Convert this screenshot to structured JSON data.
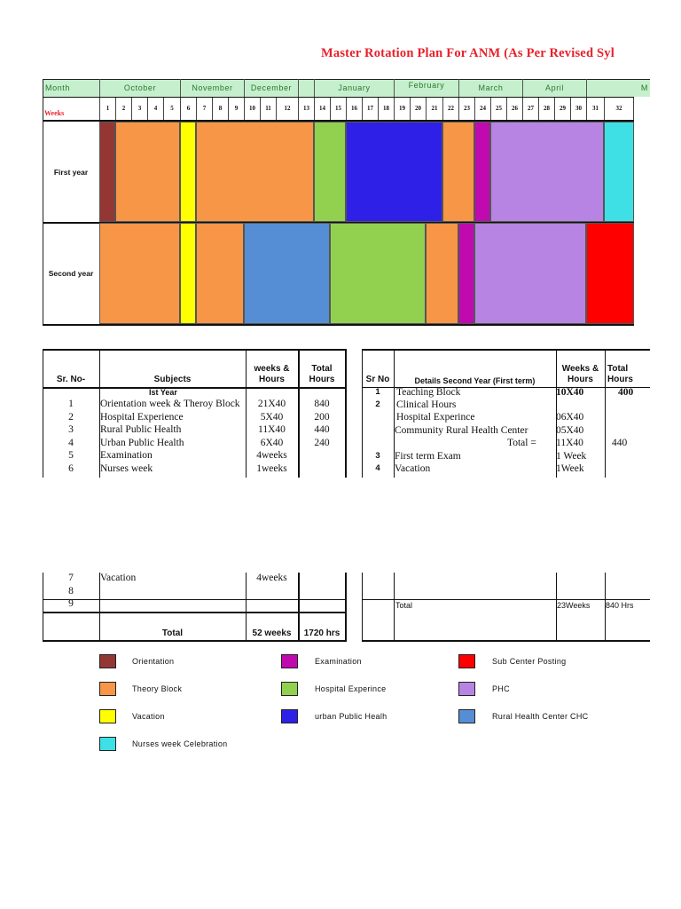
{
  "title": "Master Rotation Plan For ANM (As Per Revised Syllabus)",
  "title_visible": "Master Rotation Plan For ANM (As Per Revised Syl",
  "header": {
    "month_label": "Month",
    "weeks_label": "Weeks",
    "months": [
      {
        "name": "October",
        "from": 1,
        "to": 5
      },
      {
        "name": "November",
        "from": 6,
        "to": 9
      },
      {
        "name": "December",
        "from": 10,
        "to": 12
      },
      {
        "name": "",
        "from": 13,
        "to": 13
      },
      {
        "name": "January",
        "from": 14,
        "to": 18
      },
      {
        "name": "February",
        "from": 19,
        "to": 22
      },
      {
        "name": "March",
        "from": 23,
        "to": 26
      },
      {
        "name": "April",
        "from": 27,
        "to": 30
      },
      {
        "name": "M",
        "from": 31,
        "to": 32
      }
    ],
    "weeks": [
      "1",
      "2",
      "3",
      "4",
      "5",
      "6",
      "7",
      "8",
      "9",
      "10",
      "11",
      "12",
      "13",
      "14",
      "15",
      "16",
      "17",
      "18",
      "19",
      "20",
      "21",
      "22",
      "23",
      "24",
      "25",
      "26",
      "27",
      "28",
      "29",
      "30",
      "31",
      "32"
    ]
  },
  "colors": {
    "orientation": "#943634",
    "theory": "#f79646",
    "vacation": "#ffff00",
    "hospital": "#92d050",
    "urban": "#2e20e6",
    "exam": "#c00ab0",
    "phc": "#b784e4",
    "nurses": "#3ee0e6",
    "rural": "#558ed5",
    "subcenter": "#ff0000"
  },
  "rows": [
    {
      "label": "First year",
      "blocks": [
        {
          "type": "orientation",
          "from": 1,
          "to": 1
        },
        {
          "type": "theory",
          "from": 2,
          "to": 5
        },
        {
          "type": "vacation",
          "from": 6,
          "to": 6
        },
        {
          "type": "theory",
          "from": 7,
          "to": 13
        },
        {
          "type": "hospital",
          "from": 14,
          "to": 15
        },
        {
          "type": "urban",
          "from": 16,
          "to": 21
        },
        {
          "type": "theory",
          "from": 22,
          "to": 23
        },
        {
          "type": "exam",
          "from": 24,
          "to": 24
        },
        {
          "type": "phc",
          "from": 25,
          "to": 31
        },
        {
          "type": "nurses",
          "from": 32,
          "to": 32
        }
      ]
    },
    {
      "label": "Second year",
      "blocks": [
        {
          "type": "theory",
          "from": 1,
          "to": 5
        },
        {
          "type": "vacation",
          "from": 6,
          "to": 6
        },
        {
          "type": "theory",
          "from": 7,
          "to": 9
        },
        {
          "type": "rural",
          "from": 10,
          "to": 14
        },
        {
          "type": "hospital",
          "from": 15,
          "to": 20
        },
        {
          "type": "theory",
          "from": 21,
          "to": 22
        },
        {
          "type": "exam",
          "from": 23,
          "to": 23
        },
        {
          "type": "phc",
          "from": 24,
          "to": 30
        },
        {
          "type": "subcenter",
          "from": 31,
          "to": 32
        }
      ]
    }
  ],
  "first_table": {
    "headers": [
      "Sr. No-",
      "Subjects",
      "weeks & Hours",
      "Total Hours"
    ],
    "section": "Ist Year",
    "rows": [
      [
        "1",
        "Orientation week &  Theroy Block",
        "21X40",
        "840"
      ],
      [
        "2",
        "Hospital Experience",
        "5X40",
        "200"
      ],
      [
        "3",
        "Rural Public Health",
        "11X40",
        "440"
      ],
      [
        "4",
        "Urban Public Health",
        "6X40",
        "240"
      ],
      [
        "5",
        "Examination",
        "4weeks",
        ""
      ],
      [
        "6",
        "Nurses week",
        "1weeks",
        ""
      ],
      [
        "7",
        "Vacation",
        "4weeks",
        ""
      ],
      [
        "8",
        "",
        "",
        ""
      ],
      [
        "9",
        "",
        "",
        ""
      ]
    ],
    "total": {
      "label": "Total",
      "weeks": "52 weeks",
      "hours": "1720 hrs"
    }
  },
  "second_table": {
    "headers": [
      "Sr No",
      "Details Second Year (First term)",
      "Weeks & Hours",
      "Total Hours"
    ],
    "rows": [
      [
        "1",
        "Teaching Block",
        "10X40",
        "400"
      ],
      [
        "2",
        "Clinical Hours",
        "",
        ""
      ],
      [
        "",
        "Hospital Experince",
        "06X40",
        ""
      ],
      [
        "",
        "Community Rural Health Center",
        "05X40",
        ""
      ],
      [
        "",
        "Total =",
        "11X40",
        "440"
      ],
      [
        "3",
        "First term Exam",
        "1 Week",
        ""
      ],
      [
        "4",
        "Vacation",
        "1Week",
        ""
      ]
    ],
    "total": {
      "label": "Total",
      "weeks": "23Weeks",
      "hours": "840 Hrs"
    }
  },
  "legend": [
    {
      "type": "orientation",
      "label": "Orientation"
    },
    {
      "type": "exam",
      "label": "Examination"
    },
    {
      "type": "subcenter",
      "label": "Sub Center Posting"
    },
    {
      "type": "theory",
      "label": "Theory Block"
    },
    {
      "type": "hospital",
      "label": "Hospital Experince"
    },
    {
      "type": "phc",
      "label": "PHC"
    },
    {
      "type": "vacation",
      "label": "Vacation"
    },
    {
      "type": "urban",
      "label": "urban Public Healh"
    },
    {
      "type": "rural",
      "label": "Rural Health Center CHC"
    },
    {
      "type": "nurses",
      "label": "Nurses week Celebration"
    }
  ]
}
